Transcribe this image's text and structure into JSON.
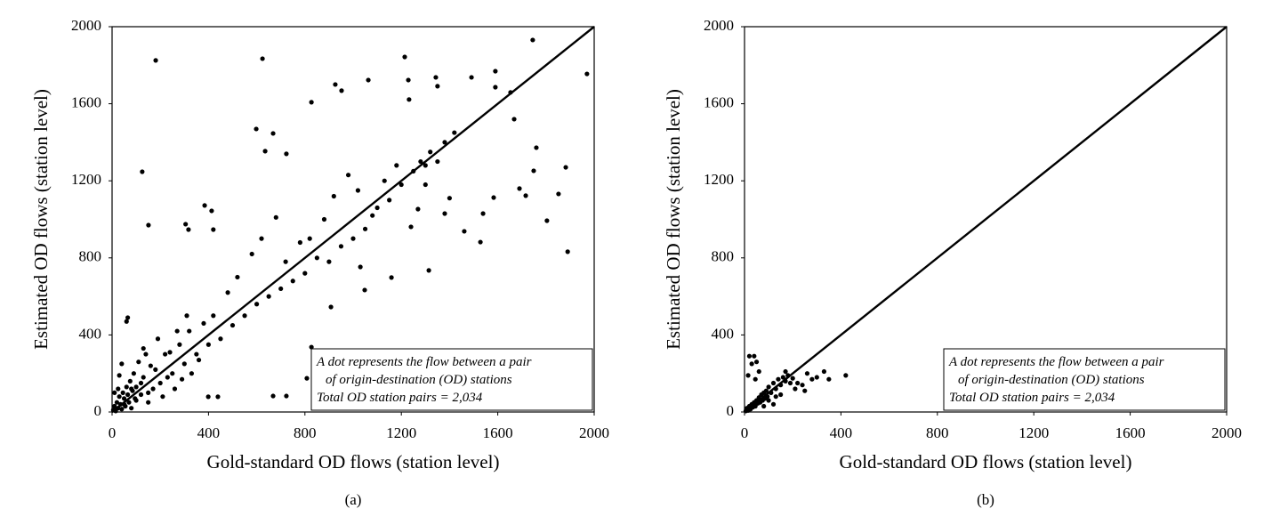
{
  "chart_data": [
    {
      "type": "scatter",
      "caption": "(a)",
      "x_label": "Gold-standard OD flows (station level)",
      "y_label": "Estimated OD flows (station level)",
      "annotation": [
        "A dot represents the flow between a pair",
        "of origin-destination (OD) stations",
        "Total OD station pairs = 2,034"
      ],
      "xlim": [
        0,
        2000
      ],
      "ylim": [
        0,
        2000
      ],
      "xticks": [
        0,
        400,
        800,
        1200,
        1600,
        2000
      ],
      "yticks": [
        0,
        400,
        800,
        1200,
        1600,
        2000
      ],
      "grid": false,
      "diagonal": true,
      "color": "#000000",
      "series": [
        {
          "name": "OD station pairs",
          "color": "#000000",
          "x": [
            181,
            624,
            668,
            125,
            151,
            305,
            384,
            413,
            317,
            420,
            598,
            635,
            723,
            827,
            926,
            952,
            1063,
            1214,
            1229,
            1232,
            1343,
            1350,
            1491,
            1590,
            1590,
            1745,
            1970,
            1653,
            1668,
            1716,
            1760,
            1749,
            1690,
            1882,
            1852,
            1804,
            1890,
            1539,
            1528,
            1461,
            1314,
            1583,
            1269,
            1380,
            1240,
            1048,
            1159,
            1030,
            908,
            827,
            723,
            668,
            399,
            439,
            808,
            50,
            80,
            100,
            120,
            150,
            180,
            200,
            220,
            250,
            280,
            300,
            320,
            350,
            380,
            400,
            420,
            450,
            480,
            500,
            520,
            550,
            580,
            600,
            620,
            650,
            680,
            700,
            720,
            750,
            780,
            800,
            820,
            850,
            880,
            900,
            920,
            950,
            980,
            1000,
            1020,
            1050,
            1080,
            1100,
            1130,
            1150,
            1180,
            1200,
            1250,
            1280,
            1300,
            1320,
            1350,
            1380,
            1420,
            1400,
            1300,
            5,
            10,
            15,
            20,
            25,
            30,
            35,
            40,
            45,
            50,
            55,
            60,
            65,
            70,
            75,
            80,
            85,
            90,
            95,
            100,
            110,
            120,
            130,
            140,
            150,
            160,
            170,
            190,
            60,
            65,
            25,
            30,
            10,
            40,
            210,
            230,
            260,
            270,
            290,
            310,
            330,
            360,
            130,
            240
          ],
          "y": [
            1825,
            1834,
            1446,
            1247,
            970,
            975,
            1072,
            1044,
            947,
            947,
            1469,
            1354,
            1340,
            1608,
            1700,
            1668,
            1723,
            1843,
            1723,
            1622,
            1737,
            1691,
            1737,
            1769,
            1686,
            1931,
            1755,
            1659,
            1520,
            1123,
            1372,
            1252,
            1160,
            1270,
            1132,
            993,
            832,
            1030,
            882,
            938,
            735,
            1113,
            1053,
            1030,
            961,
            633,
            698,
            753,
            545,
            337,
            83,
            83,
            79,
            79,
            175,
            40,
            120,
            60,
            150,
            100,
            220,
            150,
            300,
            200,
            350,
            250,
            420,
            300,
            460,
            350,
            500,
            380,
            620,
            450,
            700,
            500,
            820,
            560,
            900,
            600,
            1010,
            640,
            780,
            680,
            880,
            720,
            900,
            800,
            1000,
            780,
            1120,
            860,
            1230,
            900,
            1150,
            950,
            1020,
            1060,
            1200,
            1100,
            1280,
            1180,
            1250,
            1300,
            1280,
            1350,
            1300,
            1400,
            1450,
            1110,
            1180,
            10,
            30,
            5,
            50,
            20,
            80,
            40,
            15,
            100,
            70,
            30,
            130,
            90,
            50,
            160,
            20,
            110,
            200,
            70,
            130,
            260,
            90,
            180,
            300,
            50,
            240,
            120,
            380,
            470,
            490,
            120,
            190,
            100,
            250,
            80,
            180,
            120,
            420,
            170,
            500,
            200,
            270,
            330,
            310
          ]
        }
      ]
    },
    {
      "type": "scatter",
      "caption": "(b)",
      "x_label": "Gold-standard OD flows (station level)",
      "y_label": "Estimated OD flows (station level)",
      "annotation": [
        "A dot represents the flow between a pair",
        "of origin-destination (OD) stations",
        "Total OD station pairs = 2,034"
      ],
      "xlim": [
        0,
        2000
      ],
      "ylim": [
        0,
        2000
      ],
      "xticks": [
        0,
        400,
        800,
        1200,
        1600,
        2000
      ],
      "yticks": [
        0,
        400,
        800,
        1200,
        1600,
        2000
      ],
      "grid": false,
      "diagonal": true,
      "color": "#000000",
      "series": [
        {
          "name": "OD station pairs",
          "color": "#000000",
          "x": [
            5,
            10,
            15,
            20,
            25,
            30,
            35,
            40,
            45,
            50,
            55,
            60,
            65,
            70,
            75,
            80,
            85,
            90,
            95,
            100,
            110,
            120,
            130,
            140,
            150,
            160,
            170,
            180,
            190,
            200,
            210,
            220,
            240,
            260,
            280,
            300,
            330,
            350,
            420,
            20,
            40,
            30,
            50,
            15,
            60,
            45,
            100,
            120,
            80,
            150,
            250,
            170,
            130
          ],
          "y": [
            5,
            20,
            8,
            30,
            15,
            40,
            25,
            50,
            30,
            60,
            45,
            75,
            50,
            90,
            60,
            100,
            70,
            110,
            80,
            130,
            100,
            150,
            120,
            170,
            140,
            180,
            160,
            190,
            150,
            175,
            120,
            150,
            140,
            200,
            170,
            180,
            210,
            170,
            190,
            290,
            290,
            250,
            260,
            190,
            210,
            170,
            60,
            40,
            30,
            90,
            110,
            210,
            80
          ]
        }
      ]
    }
  ]
}
